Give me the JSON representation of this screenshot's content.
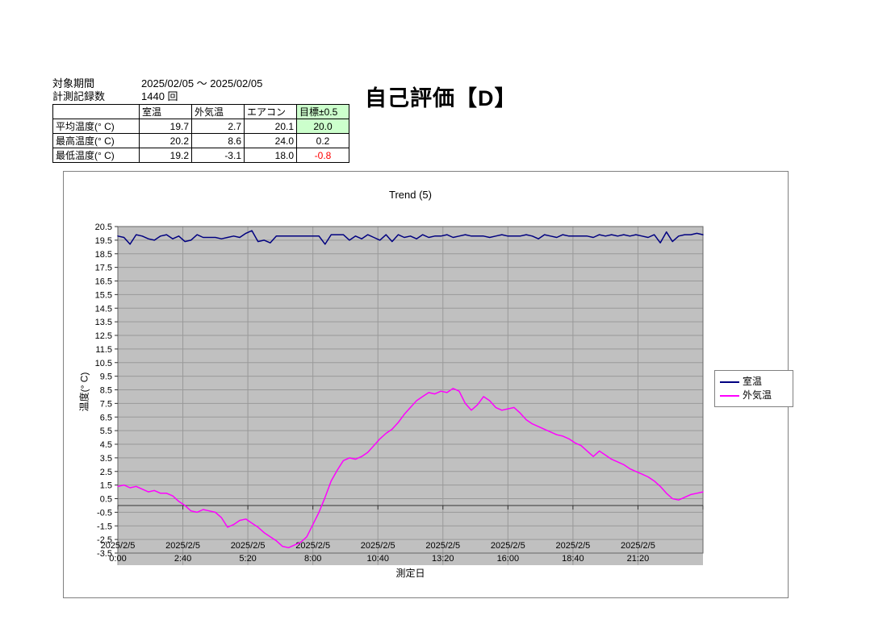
{
  "header": {
    "period_label": "対象期間",
    "period_value": "2025/02/05 ～ 2025/02/05",
    "count_label": "計測記録数",
    "count_value": "1440 回",
    "evaluation_title": "自己評価【D】"
  },
  "summary_table": {
    "columns": [
      "",
      "室温",
      "外気温",
      "エアコン",
      "目標±0.5"
    ],
    "rows": [
      {
        "label": "平均温度(° C)",
        "room": "19.7",
        "outside": "2.7",
        "aircon": "20.1",
        "target": "20.0"
      },
      {
        "label": "最高温度(° C)",
        "room": "20.2",
        "outside": "8.6",
        "aircon": "24.0",
        "target": "0.2"
      },
      {
        "label": "最低温度(° C)",
        "room": "19.2",
        "outside": "-3.1",
        "aircon": "18.0",
        "target": "-0.8"
      }
    ],
    "highlight_green": "#ccffcc",
    "negative_red": "#ff0000"
  },
  "chart_data": {
    "type": "line",
    "title": "Trend (5)",
    "xlabel": "測定日",
    "ylabel": "温度(° C)",
    "ylim": [
      -3.5,
      20.5
    ],
    "ytick_step": 1,
    "y_tick_labels": [
      "20.5",
      "19.5",
      "18.5",
      "17.5",
      "16.5",
      "15.5",
      "14.5",
      "13.5",
      "12.5",
      "11.5",
      "10.5",
      "9.5",
      "8.5",
      "7.5",
      "6.5",
      "5.5",
      "4.5",
      "3.5",
      "2.5",
      "1.5",
      "0.5",
      "-0.5",
      "-1.5",
      "-2.5",
      "-3.5"
    ],
    "xlim_hours": [
      0,
      24
    ],
    "x_ticks": [
      {
        "hour": 0,
        "date": "2025/2/5",
        "time": "0:00"
      },
      {
        "hour": 2.6667,
        "date": "2025/2/5",
        "time": "2:40"
      },
      {
        "hour": 5.3333,
        "date": "2025/2/5",
        "time": "5:20"
      },
      {
        "hour": 8,
        "date": "2025/2/5",
        "time": "8:00"
      },
      {
        "hour": 10.6667,
        "date": "2025/2/5",
        "time": "10:40"
      },
      {
        "hour": 13.3333,
        "date": "2025/2/5",
        "time": "13:20"
      },
      {
        "hour": 16,
        "date": "2025/2/5",
        "time": "16:00"
      },
      {
        "hour": 18.6667,
        "date": "2025/2/5",
        "time": "18:40"
      },
      {
        "hour": 21.3333,
        "date": "2025/2/5",
        "time": "21:20"
      }
    ],
    "grid": true,
    "plot_bg": "#c0c0c0",
    "grid_color": "#999999",
    "legend_position": "right",
    "sample_interval_minutes": 15,
    "series": [
      {
        "name": "室温",
        "color": "#000080",
        "values": [
          19.8,
          19.7,
          19.2,
          19.9,
          19.8,
          19.6,
          19.5,
          19.8,
          19.9,
          19.6,
          19.8,
          19.4,
          19.5,
          19.9,
          19.7,
          19.7,
          19.7,
          19.6,
          19.7,
          19.8,
          19.7,
          20.0,
          20.2,
          19.4,
          19.5,
          19.3,
          19.8,
          19.8,
          19.8,
          19.8,
          19.8,
          19.8,
          19.8,
          19.8,
          19.2,
          19.9,
          19.9,
          19.9,
          19.5,
          19.8,
          19.6,
          19.9,
          19.7,
          19.5,
          19.9,
          19.4,
          19.9,
          19.7,
          19.8,
          19.6,
          19.9,
          19.7,
          19.8,
          19.8,
          19.9,
          19.7,
          19.8,
          19.9,
          19.8,
          19.8,
          19.8,
          19.7,
          19.8,
          19.9,
          19.8,
          19.8,
          19.8,
          19.9,
          19.8,
          19.6,
          19.9,
          19.8,
          19.7,
          19.9,
          19.8,
          19.8,
          19.8,
          19.8,
          19.7,
          19.9,
          19.8,
          19.9,
          19.8,
          19.9,
          19.8,
          19.9,
          19.8,
          19.7,
          19.9,
          19.3,
          20.1,
          19.4,
          19.8,
          19.9,
          19.9,
          20.0,
          19.9
        ]
      },
      {
        "name": "外気温",
        "color": "#ff00ff",
        "values": [
          1.4,
          1.5,
          1.3,
          1.4,
          1.2,
          1.0,
          1.1,
          0.9,
          0.9,
          0.7,
          0.3,
          0.0,
          -0.4,
          -0.5,
          -0.3,
          -0.4,
          -0.5,
          -0.9,
          -1.6,
          -1.4,
          -1.1,
          -1.0,
          -1.3,
          -1.6,
          -2.0,
          -2.3,
          -2.6,
          -3.0,
          -3.1,
          -2.9,
          -2.7,
          -2.3,
          -1.4,
          -0.5,
          0.6,
          1.8,
          2.6,
          3.3,
          3.5,
          3.4,
          3.6,
          3.9,
          4.4,
          4.9,
          5.3,
          5.6,
          6.1,
          6.7,
          7.2,
          7.7,
          8.0,
          8.3,
          8.2,
          8.4,
          8.3,
          8.6,
          8.4,
          7.5,
          7.0,
          7.4,
          8.0,
          7.7,
          7.2,
          7.0,
          7.1,
          7.2,
          6.8,
          6.3,
          6.0,
          5.8,
          5.6,
          5.4,
          5.2,
          5.1,
          4.9,
          4.6,
          4.4,
          4.0,
          3.6,
          4.0,
          3.7,
          3.4,
          3.2,
          3.0,
          2.7,
          2.5,
          2.3,
          2.1,
          1.8,
          1.4,
          0.9,
          0.5,
          0.4,
          0.6,
          0.8,
          0.9,
          1.0
        ]
      }
    ]
  }
}
